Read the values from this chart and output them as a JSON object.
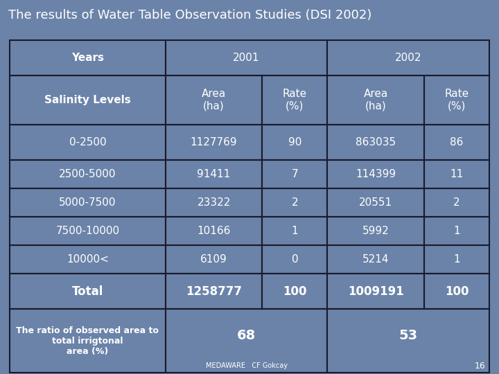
{
  "title": "The results of Water Table Observation Studies (DSI 2002)",
  "bg_color": "#6b83a8",
  "text_color": "#ffffff",
  "border_color": "#1a1a2e",
  "rows_header1": [
    "Years",
    "2001",
    "2002"
  ],
  "rows_header2": [
    "Salinity Levels",
    "Area\n(ha)",
    "Rate\n(%)",
    "Area\n(ha)",
    "Rate\n(%)"
  ],
  "data_rows": [
    [
      "0-2500",
      "1127769",
      "90",
      "863035",
      "86"
    ],
    [
      "2500-5000",
      "91411",
      "7",
      "114399",
      "11"
    ],
    [
      "5000-7500",
      "23322",
      "2",
      "20551",
      "2"
    ],
    [
      "7500-10000",
      "10166",
      "1",
      "5992",
      "1"
    ],
    [
      "10000<",
      "6109",
      "0",
      "5214",
      "1"
    ],
    [
      "Total",
      "1258777",
      "100",
      "1009191",
      "100"
    ]
  ],
  "footer_left": "The ratio of observed area to\ntotal irrigtonal\narea (%)",
  "footer_mid_val": "68",
  "footer_right_val": "53",
  "footer_credit": "MEDAWARE   CF Gokcay",
  "footer_page": "16",
  "title_fontsize": 13,
  "header_fontsize": 11,
  "data_fontsize": 11,
  "total_fontsize": 12,
  "footer_val_fontsize": 14,
  "footer_text_fontsize": 9,
  "credit_fontsize": 7,
  "page_fontsize": 9
}
